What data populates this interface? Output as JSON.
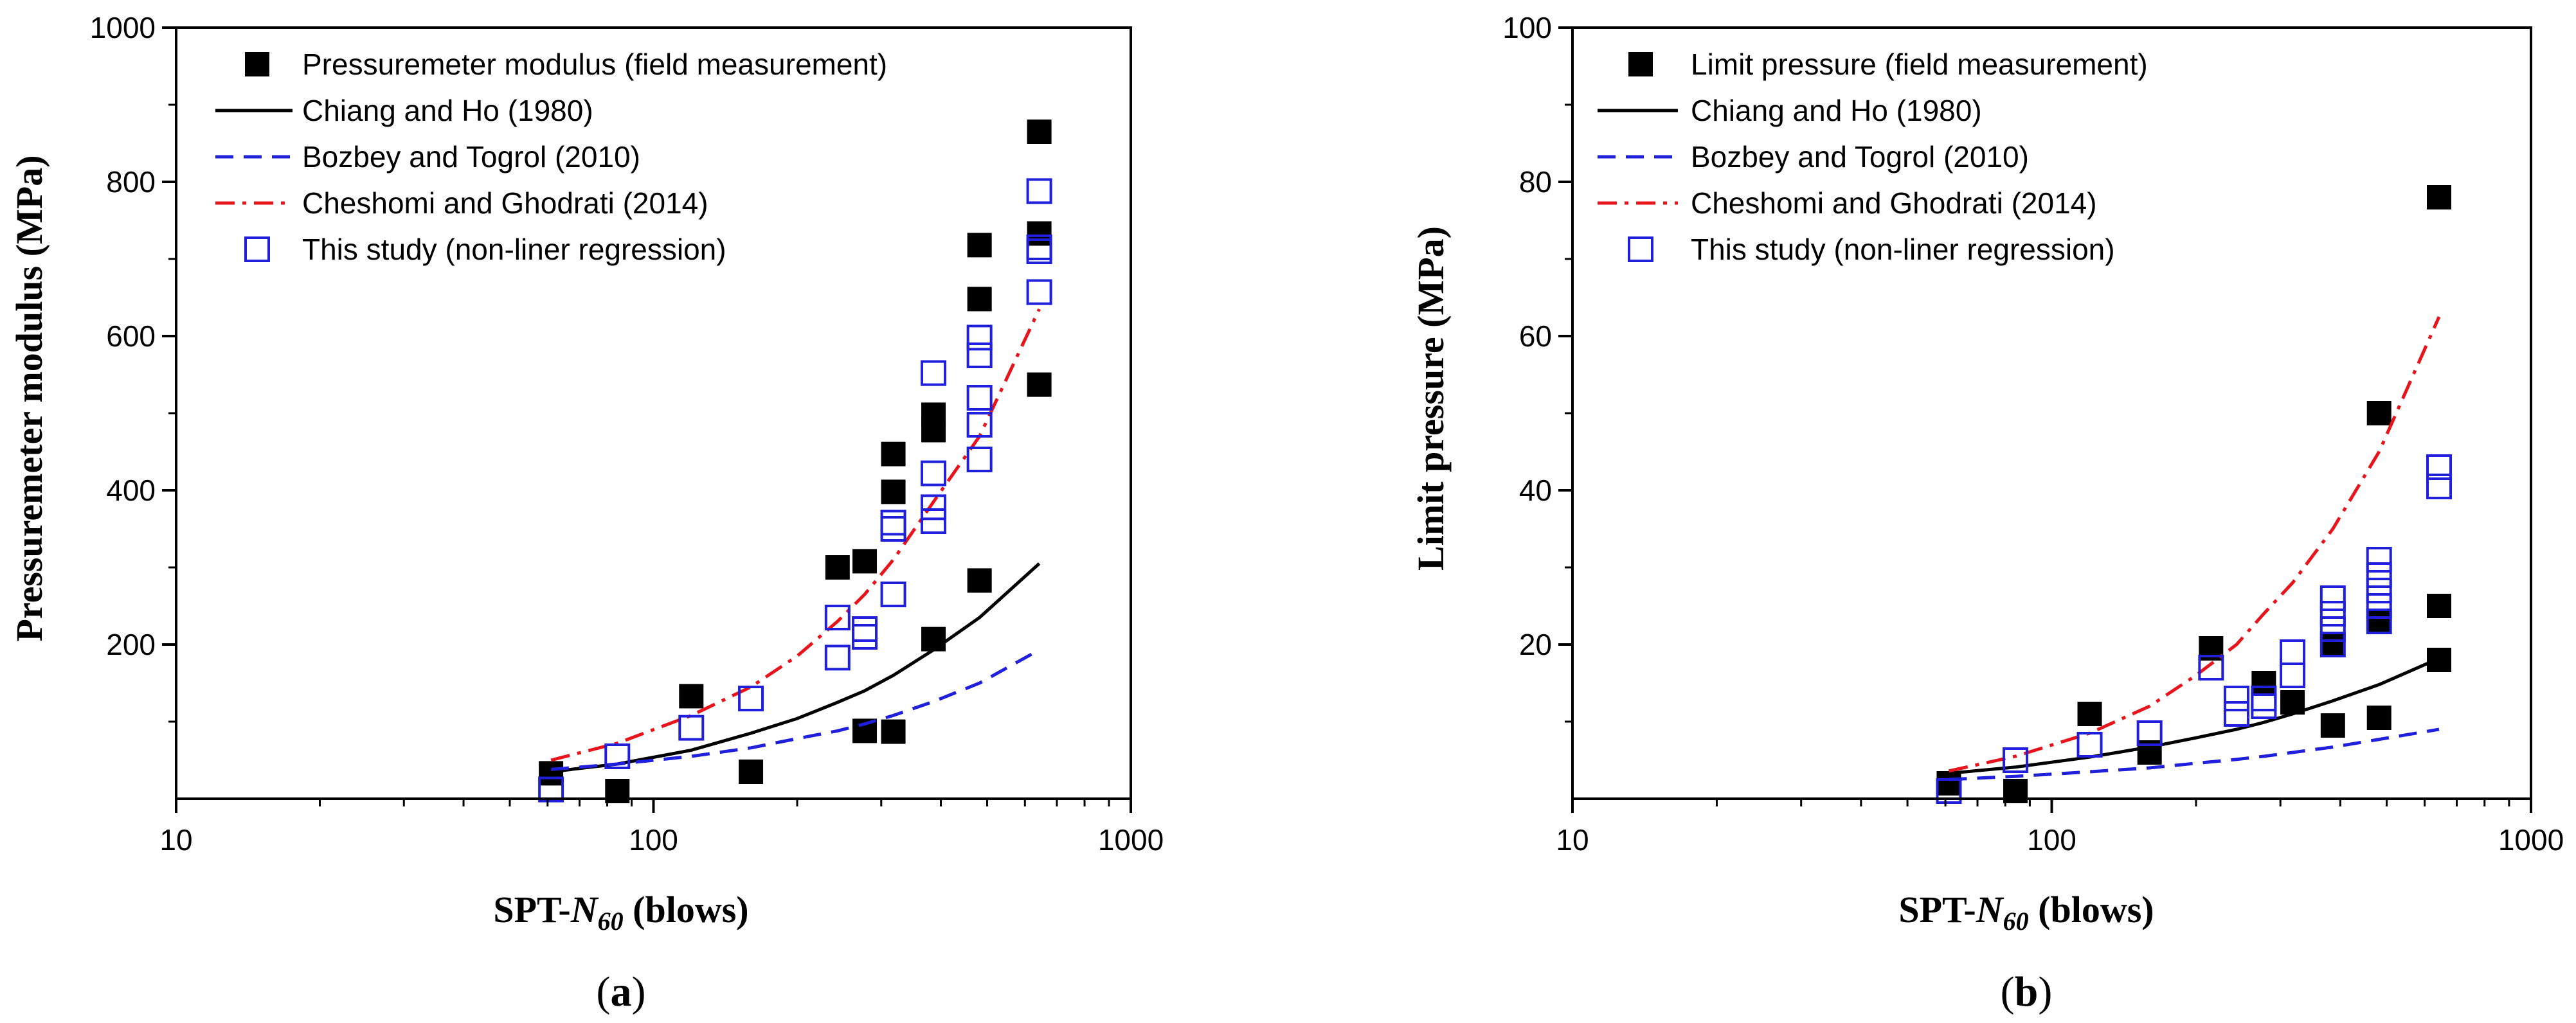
{
  "chart_data": [
    {
      "type": "scatter",
      "x_scale": "log",
      "xlim": [
        10,
        1000
      ],
      "ylim": [
        0,
        1000
      ],
      "x_ticks": [
        {
          "v": 10,
          "label": "10"
        },
        {
          "v": 100,
          "label": "100"
        },
        {
          "v": 1000,
          "label": "1000"
        }
      ],
      "y_ticks": [
        {
          "v": 200,
          "label": "200"
        },
        {
          "v": 400,
          "label": "400"
        },
        {
          "v": 600,
          "label": "600"
        },
        {
          "v": 800,
          "label": "800"
        },
        {
          "v": 1000,
          "label": "1000"
        }
      ],
      "ylabel": "Pressuremeter modulus (MPa)",
      "xlabel_prefix": "SPT-",
      "xlabel_var": "N",
      "xlabel_sub": "60",
      "xlabel_suffix": " (blows)",
      "panel_open": "(",
      "panel_letter": "a",
      "panel_close": ")",
      "series": [
        {
          "name": "Pressuremeter modulus (field measurement)",
          "kind": "marker",
          "marker": "filled-square",
          "color": "#000000",
          "points": [
            [
              61,
              33
            ],
            [
              84,
              10
            ],
            [
              120,
              133
            ],
            [
              160,
              35
            ],
            [
              243,
              300
            ],
            [
              277,
              308
            ],
            [
              277,
              88
            ],
            [
              318,
              447
            ],
            [
              318,
              398
            ],
            [
              318,
              87
            ],
            [
              386,
              498
            ],
            [
              386,
              478
            ],
            [
              386,
              207
            ],
            [
              482,
              718
            ],
            [
              482,
              648
            ],
            [
              482,
              283
            ],
            [
              643,
              865
            ],
            [
              643,
              733
            ],
            [
              643,
              537
            ]
          ]
        },
        {
          "name": "Chiang and Ho (1980)",
          "kind": "line",
          "dash": "solid",
          "color": "#000000",
          "points": [
            [
              61,
              35
            ],
            [
              84,
              45
            ],
            [
              120,
              63
            ],
            [
              160,
              85
            ],
            [
              200,
              104
            ],
            [
              243,
              125
            ],
            [
              277,
              140
            ],
            [
              318,
              160
            ],
            [
              386,
              193
            ],
            [
              482,
              235
            ],
            [
              643,
              305
            ]
          ]
        },
        {
          "name": "Bozbey and Togrol (2010)",
          "kind": "line",
          "dash": "dashed",
          "color": "#1f1fdc",
          "points": [
            [
              61,
              38
            ],
            [
              84,
              45
            ],
            [
              120,
              55
            ],
            [
              160,
              66
            ],
            [
              200,
              78
            ],
            [
              243,
              88
            ],
            [
              277,
              97
            ],
            [
              318,
              108
            ],
            [
              386,
              126
            ],
            [
              482,
              150
            ],
            [
              643,
              193
            ]
          ]
        },
        {
          "name": "Cheshomi and Ghodrati (2014)",
          "kind": "line",
          "dash": "dashdot",
          "color": "#e8141c",
          "points": [
            [
              61,
              50
            ],
            [
              84,
              72
            ],
            [
              120,
              108
            ],
            [
              160,
              145
            ],
            [
              200,
              185
            ],
            [
              243,
              230
            ],
            [
              277,
              265
            ],
            [
              318,
              310
            ],
            [
              386,
              385
            ],
            [
              482,
              470
            ],
            [
              643,
              635
            ]
          ]
        },
        {
          "name": "This study (non-liner regression)",
          "kind": "marker",
          "marker": "open-square",
          "color": "#1f1fdc",
          "points": [
            [
              61,
              12
            ],
            [
              84,
              55
            ],
            [
              120,
              92
            ],
            [
              160,
              130
            ],
            [
              243,
              235
            ],
            [
              243,
              183
            ],
            [
              277,
              220
            ],
            [
              277,
              210
            ],
            [
              318,
              358
            ],
            [
              318,
              350
            ],
            [
              318,
              265
            ],
            [
              386,
              552
            ],
            [
              386,
              422
            ],
            [
              386,
              378
            ],
            [
              386,
              360
            ],
            [
              482,
              598
            ],
            [
              482,
              575
            ],
            [
              482,
              520
            ],
            [
              482,
              485
            ],
            [
              482,
              440
            ],
            [
              643,
              788
            ],
            [
              643,
              715
            ],
            [
              643,
              710
            ],
            [
              643,
              657
            ]
          ]
        }
      ]
    },
    {
      "type": "scatter",
      "x_scale": "log",
      "xlim": [
        10,
        1000
      ],
      "ylim": [
        0,
        100
      ],
      "x_ticks": [
        {
          "v": 10,
          "label": "10"
        },
        {
          "v": 100,
          "label": "100"
        },
        {
          "v": 1000,
          "label": "1000"
        }
      ],
      "y_ticks": [
        {
          "v": 20,
          "label": "20"
        },
        {
          "v": 40,
          "label": "40"
        },
        {
          "v": 60,
          "label": "60"
        },
        {
          "v": 80,
          "label": "80"
        },
        {
          "v": 100,
          "label": "100"
        }
      ],
      "ylabel": "Limit pressure (MPa)",
      "xlabel_prefix": "SPT-",
      "xlabel_var": "N",
      "xlabel_sub": "60",
      "xlabel_suffix": " (blows)",
      "panel_open": "(",
      "panel_letter": "b",
      "panel_close": ")",
      "series": [
        {
          "name": "Limit pressure (field measurement)",
          "kind": "marker",
          "marker": "filled-square",
          "color": "#000000",
          "points": [
            [
              61,
              2
            ],
            [
              84,
              1
            ],
            [
              120,
              11
            ],
            [
              160,
              6
            ],
            [
              215,
              19.5
            ],
            [
              277,
              15
            ],
            [
              318,
              12.5
            ],
            [
              386,
              20
            ],
            [
              386,
              9.5
            ],
            [
              482,
              50
            ],
            [
              482,
              23
            ],
            [
              482,
              10.5
            ],
            [
              643,
              78
            ],
            [
              643,
              25
            ],
            [
              643,
              18
            ]
          ]
        },
        {
          "name": "Chiang and Ho (1980)",
          "kind": "line",
          "dash": "solid",
          "color": "#000000",
          "points": [
            [
              61,
              3.3
            ],
            [
              84,
              4.1
            ],
            [
              120,
              5.4
            ],
            [
              160,
              6.7
            ],
            [
              200,
              7.9
            ],
            [
              243,
              9.0
            ],
            [
              277,
              9.9
            ],
            [
              318,
              11.0
            ],
            [
              386,
              12.7
            ],
            [
              482,
              14.8
            ],
            [
              643,
              18.2
            ]
          ]
        },
        {
          "name": "Bozbey and Togrol (2010)",
          "kind": "line",
          "dash": "dashed",
          "color": "#1f1fdc",
          "points": [
            [
              61,
              2.5
            ],
            [
              84,
              2.9
            ],
            [
              120,
              3.5
            ],
            [
              160,
              4.0
            ],
            [
              200,
              4.6
            ],
            [
              243,
              5.1
            ],
            [
              277,
              5.5
            ],
            [
              318,
              6.0
            ],
            [
              386,
              6.7
            ],
            [
              482,
              7.7
            ],
            [
              643,
              9.0
            ]
          ]
        },
        {
          "name": "Cheshomi and Ghodrati (2014)",
          "kind": "line",
          "dash": "dashdot",
          "color": "#e8141c",
          "points": [
            [
              61,
              3.6
            ],
            [
              84,
              5.5
            ],
            [
              120,
              8.5
            ],
            [
              160,
              12
            ],
            [
              200,
              16
            ],
            [
              243,
              20
            ],
            [
              277,
              24
            ],
            [
              318,
              28
            ],
            [
              386,
              35
            ],
            [
              482,
              45
            ],
            [
              643,
              62.5
            ]
          ]
        },
        {
          "name": "This study (non-liner regression)",
          "kind": "marker",
          "marker": "open-square",
          "color": "#1f1fdc",
          "points": [
            [
              61,
              1
            ],
            [
              84,
              5
            ],
            [
              120,
              7
            ],
            [
              160,
              8.5
            ],
            [
              215,
              17
            ],
            [
              243,
              13
            ],
            [
              243,
              11
            ],
            [
              277,
              13
            ],
            [
              277,
              12
            ],
            [
              318,
              19
            ],
            [
              318,
              16
            ],
            [
              386,
              26
            ],
            [
              386,
              24
            ],
            [
              386,
              22
            ],
            [
              386,
              20
            ],
            [
              482,
              31
            ],
            [
              482,
              29
            ],
            [
              482,
              27
            ],
            [
              482,
              25
            ],
            [
              482,
              23
            ],
            [
              643,
              43
            ],
            [
              643,
              40.5
            ]
          ]
        }
      ]
    }
  ]
}
